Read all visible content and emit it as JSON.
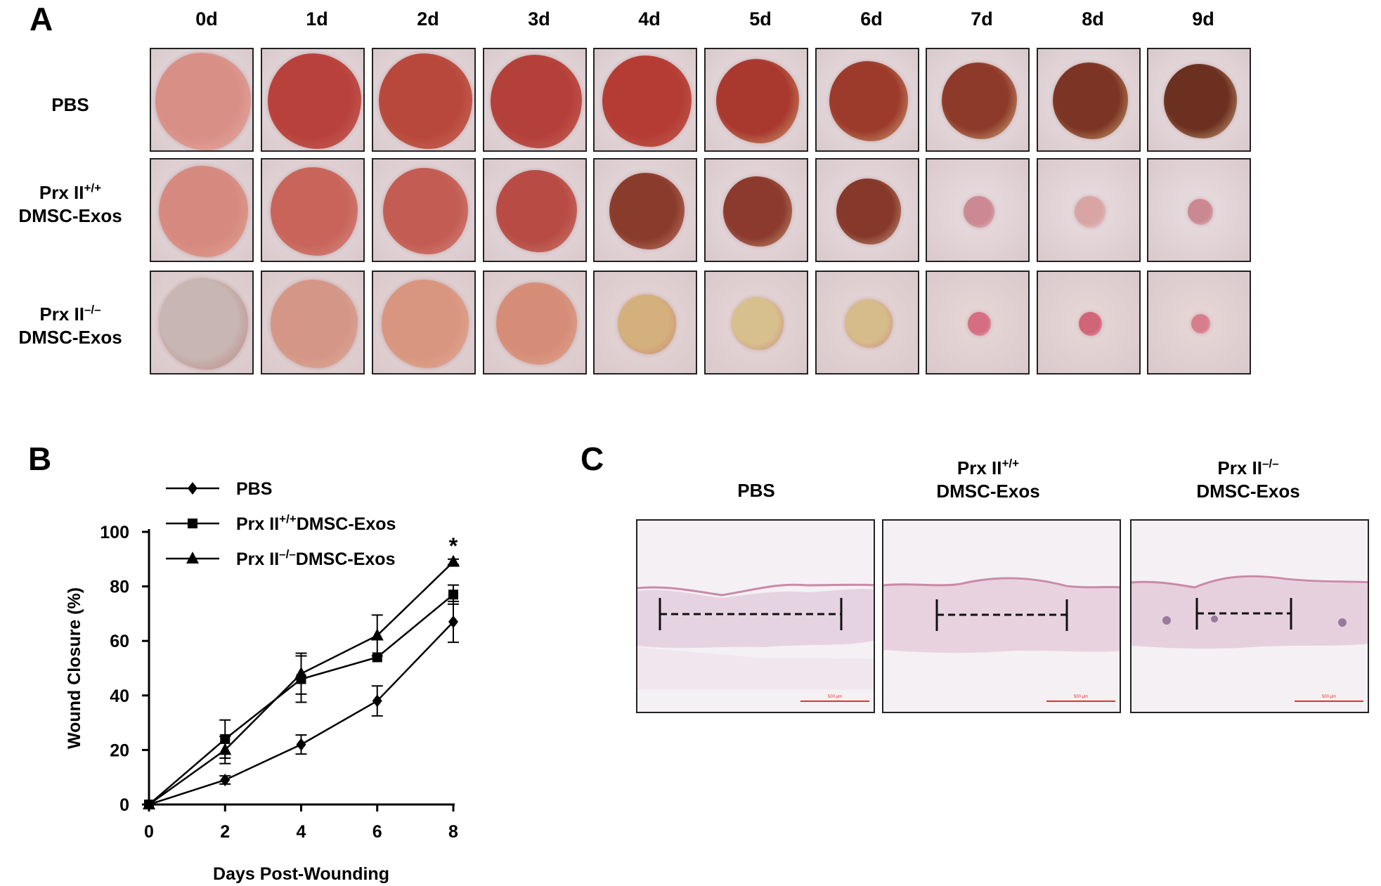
{
  "panel_a": {
    "letter": "A",
    "days": [
      "0d",
      "1d",
      "2d",
      "3d",
      "4d",
      "5d",
      "6d",
      "7d",
      "8d",
      "9d"
    ],
    "rows": [
      {
        "line1": "PBS",
        "sup1": "",
        "line2": ""
      },
      {
        "line1": "Prx II",
        "sup1": "+/+",
        "line2": "DMSC-Exos"
      },
      {
        "line1": "Prx II",
        "sup1": "–/–",
        "line2": "DMSC-Exos"
      }
    ]
  },
  "panel_b": {
    "letter": "B",
    "chart_data": {
      "type": "line",
      "xlabel": "Days Post-Wounding",
      "ylabel": "Wound Closure (%)",
      "x": [
        0,
        2,
        4,
        6,
        8
      ],
      "xlim": [
        0,
        8
      ],
      "ylim": [
        0,
        100
      ],
      "xticks": [
        "0",
        "2",
        "4",
        "6",
        "8"
      ],
      "yticks": [
        "0",
        "20",
        "40",
        "60",
        "80",
        "100"
      ],
      "grid": false,
      "legend_position": "top-left",
      "significance_marker": "*",
      "series": [
        {
          "name": "PBS",
          "marker": "diamond",
          "values": [
            0,
            9,
            22,
            38,
            67
          ],
          "errors": [
            0,
            1.5,
            3.5,
            5.5,
            7.5
          ]
        },
        {
          "name_prefix": "Prx II",
          "name_sup": "+/+",
          "name_suffix": "DMSC-Exos",
          "marker": "square",
          "values": [
            0,
            24,
            46,
            54,
            77
          ],
          "errors": [
            0,
            7,
            8.5,
            0,
            3.5
          ]
        },
        {
          "name_prefix": "Prx II",
          "name_sup": "–/–",
          "name_suffix": "DMSC-Exos",
          "marker": "triangle",
          "values": [
            0,
            20,
            48,
            62,
            89
          ],
          "errors": [
            0,
            5,
            7.5,
            7.5,
            1
          ]
        }
      ]
    }
  },
  "panel_c": {
    "letter": "C",
    "groups": [
      {
        "line1": "PBS",
        "sup1": "",
        "line2": ""
      },
      {
        "line1": "Prx II",
        "sup1": "+/+",
        "line2": "DMSC-Exos"
      },
      {
        "line1": "Prx II",
        "sup1": "–/–",
        "line2": "DMSC-Exos"
      }
    ],
    "scale_label": "500 μm"
  }
}
